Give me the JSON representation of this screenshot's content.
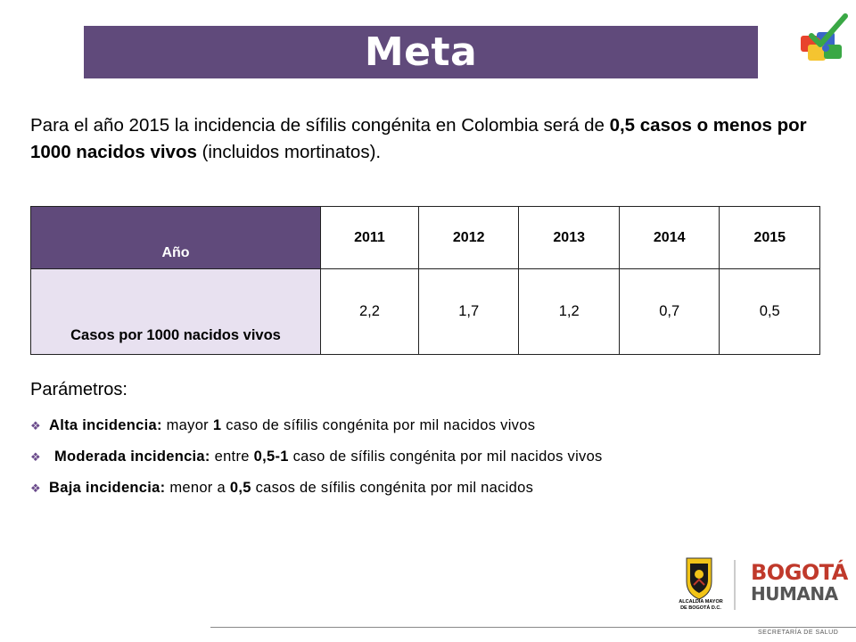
{
  "header": {
    "title": "Meta"
  },
  "intro": {
    "part1": "Para el año 2015 la incidencia de sífilis congénita en Colombia será de ",
    "bold1": "0,5 casos o menos por 1000 nacidos vivos",
    "part2": " (incluidos mortinatos)."
  },
  "table": {
    "row_header_years": "Año",
    "row_header_cases": "Casos por 1000 nacidos vivos",
    "years": [
      "2011",
      "2012",
      "2013",
      "2014",
      "2015"
    ],
    "cases": [
      "2,2",
      "1,7",
      "1,2",
      "0,7",
      "0,5"
    ]
  },
  "params": {
    "title": "Parámetros:",
    "items": [
      {
        "bold": "Alta incidencia:",
        "a": " mayor ",
        "num": "1",
        "b": " caso de sífilis congénita por mil nacidos vivos"
      },
      {
        "bold": "Moderada incidencia:",
        "a": " entre ",
        "num": "0,5-1",
        "b": " caso de sífilis congénita por mil nacidos vivos"
      },
      {
        "bold": "Baja incidencia:",
        "a": " menor a ",
        "num": "0,5",
        "b": " casos de sífilis congénita por mil nacidos"
      }
    ]
  },
  "logos": {
    "alcaldia_line1": "ALCALDÍA MAYOR",
    "alcaldia_line2": "DE BOGOTÁ D.C.",
    "bogota_word": "BOGOTÁ",
    "humana_word": "HUMANA"
  },
  "footer": {
    "text": "SECRETARÍA DE SALUD"
  },
  "icons": {
    "puzzle": "puzzle-checkmark-icon",
    "bullet": "diamond-bullet-icon",
    "shield": "coat-of-arms-icon"
  },
  "colors": {
    "accent": "#604a7b",
    "table_cell_tint": "#e8e1f0"
  }
}
